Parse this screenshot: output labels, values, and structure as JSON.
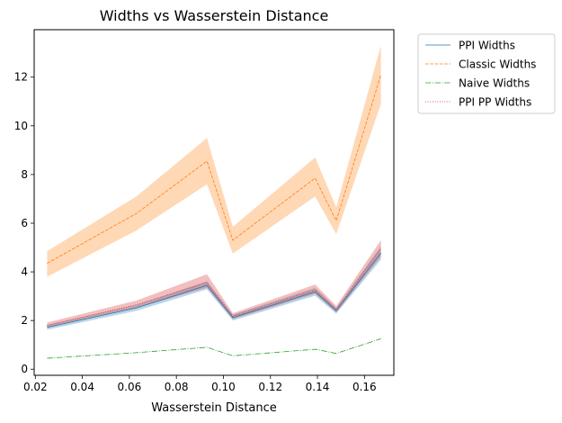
{
  "chart_data": {
    "type": "line",
    "title": "Widths vs Wasserstein Distance",
    "xlabel": "Wasserstein Distance",
    "ylabel": "",
    "xlim": [
      0.0195,
      0.1725
    ],
    "ylim": [
      -0.25,
      13.95
    ],
    "grid": false,
    "legend_position": "outside-top-right",
    "x_ticks": [
      0.02,
      0.04,
      0.06,
      0.08,
      0.1,
      0.12,
      0.14,
      0.16
    ],
    "y_ticks": [
      0,
      2,
      4,
      6,
      8,
      10,
      12
    ],
    "x": [
      0.025,
      0.063,
      0.093,
      0.104,
      0.139,
      0.148,
      0.167
    ],
    "series": [
      {
        "name": "PPI Widths",
        "color": "#1f77b4",
        "dash": "solid",
        "values": [
          1.72,
          2.52,
          3.45,
          2.12,
          3.18,
          2.4,
          4.78
        ],
        "band_lower": [
          1.62,
          2.4,
          3.28,
          2.0,
          3.02,
          2.28,
          4.5
        ],
        "band_upper": [
          1.82,
          2.64,
          3.62,
          2.24,
          3.34,
          2.52,
          5.05
        ],
        "band_color": "#1f77b4"
      },
      {
        "name": "Classic Widths",
        "color": "#ff7f0e",
        "dash": "dashed",
        "values": [
          4.35,
          6.4,
          8.55,
          5.3,
          7.85,
          6.1,
          12.1
        ],
        "band_lower": [
          3.8,
          5.7,
          7.6,
          4.75,
          7.1,
          5.55,
          10.9
        ],
        "band_upper": [
          4.85,
          7.1,
          9.5,
          5.85,
          8.7,
          6.65,
          13.3
        ],
        "band_color": "#ff7f0e"
      },
      {
        "name": "Naive Widths",
        "color": "#2ca02c",
        "dash": "dashdot",
        "values": [
          0.45,
          0.68,
          0.9,
          0.55,
          0.82,
          0.65,
          1.25
        ]
      },
      {
        "name": "PPI PP Widths",
        "color": "#d62728",
        "dash": "dotted",
        "values": [
          1.8,
          2.65,
          3.55,
          2.18,
          3.26,
          2.46,
          4.95
        ],
        "band_lower": [
          1.7,
          2.52,
          3.35,
          2.06,
          3.1,
          2.34,
          4.62
        ],
        "band_upper": [
          1.92,
          2.82,
          3.9,
          2.3,
          3.48,
          2.6,
          5.3
        ],
        "band_color": "#d62728"
      }
    ]
  }
}
